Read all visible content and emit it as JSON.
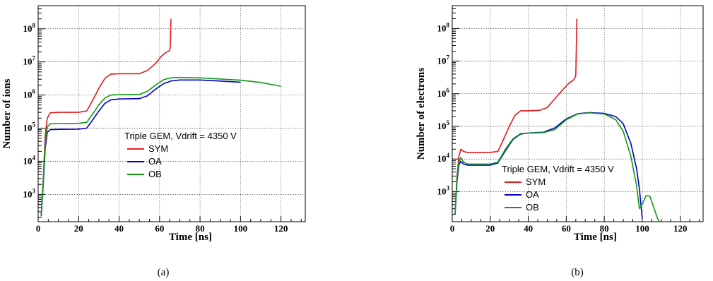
{
  "chart_data": [
    {
      "type": "line",
      "panel": "(a)",
      "xlabel": "Time [ns]",
      "ylabel": "Number of ions",
      "xlim": [
        0,
        132
      ],
      "ylim": [
        150,
        500000000
      ],
      "yscale": "log",
      "xticks": [
        0,
        20,
        40,
        60,
        80,
        100,
        120
      ],
      "yticks": [
        1000,
        10000,
        100000,
        1000000,
        10000000,
        100000000
      ],
      "grid": true,
      "legend": {
        "title": "Triple GEM, Vdrift = 4350 V",
        "placement": "center-right",
        "entries": [
          "SYM",
          "OA",
          "OB"
        ]
      },
      "series": [
        {
          "name": "SYM",
          "color": "#e41a1c",
          "points": [
            [
              1.5,
              220
            ],
            [
              2.5,
              3000
            ],
            [
              3.5,
              60000
            ],
            [
              4.5,
              200000
            ],
            [
              6,
              290000
            ],
            [
              10,
              300000
            ],
            [
              20,
              300000
            ],
            [
              24,
              330000
            ],
            [
              27,
              700000
            ],
            [
              30,
              1600000
            ],
            [
              33,
              3200000
            ],
            [
              36,
              4300000
            ],
            [
              40,
              4400000
            ],
            [
              50,
              4400000
            ],
            [
              54,
              5500000
            ],
            [
              58,
              9000000
            ],
            [
              61,
              15000000
            ],
            [
              63,
              19000000
            ],
            [
              65,
              22000000
            ],
            [
              65.3,
              30000000
            ],
            [
              65.6,
              200000000
            ]
          ]
        },
        {
          "name": "OA",
          "color": "#0000cc",
          "points": [
            [
              1.5,
              220
            ],
            [
              2.5,
              2000
            ],
            [
              3.5,
              25000
            ],
            [
              4.5,
              75000
            ],
            [
              6,
              90000
            ],
            [
              10,
              92000
            ],
            [
              20,
              93000
            ],
            [
              24,
              100000
            ],
            [
              27,
              180000
            ],
            [
              30,
              330000
            ],
            [
              33,
              560000
            ],
            [
              36,
              720000
            ],
            [
              40,
              760000
            ],
            [
              50,
              780000
            ],
            [
              54,
              950000
            ],
            [
              58,
              1500000
            ],
            [
              62,
              2200000
            ],
            [
              66,
              2700000
            ],
            [
              70,
              2850000
            ],
            [
              80,
              2850000
            ],
            [
              90,
              2650000
            ],
            [
              100,
              2450000
            ]
          ]
        },
        {
          "name": "OB",
          "color": "#119911",
          "points": [
            [
              1.5,
              220
            ],
            [
              2.5,
              2500
            ],
            [
              3.5,
              35000
            ],
            [
              4.5,
              110000
            ],
            [
              6,
              135000
            ],
            [
              10,
              138000
            ],
            [
              20,
              140000
            ],
            [
              24,
              150000
            ],
            [
              27,
              270000
            ],
            [
              30,
              500000
            ],
            [
              33,
              820000
            ],
            [
              36,
              1000000
            ],
            [
              40,
              1020000
            ],
            [
              50,
              1040000
            ],
            [
              54,
              1300000
            ],
            [
              58,
              2000000
            ],
            [
              62,
              2900000
            ],
            [
              66,
              3350000
            ],
            [
              70,
              3400000
            ],
            [
              80,
              3300000
            ],
            [
              90,
              3050000
            ],
            [
              100,
              2800000
            ],
            [
              110,
              2400000
            ],
            [
              120,
              1850000
            ]
          ]
        }
      ]
    },
    {
      "type": "line",
      "panel": "(b)",
      "xlabel": "Time [ns]",
      "ylabel": "Number of electrons",
      "xlim": [
        0,
        132
      ],
      "ylim": [
        120,
        500000000
      ],
      "yscale": "log",
      "xticks": [
        0,
        20,
        40,
        60,
        80,
        100,
        120
      ],
      "yticks": [
        1000,
        10000,
        100000,
        1000000,
        10000000,
        100000000
      ],
      "grid": true,
      "legend": {
        "title": "Triple GEM, Vdrift = 4350 V",
        "placement": "lower-center",
        "entries": [
          "SYM",
          "OA",
          "OB"
        ]
      },
      "series": [
        {
          "name": "SYM",
          "color": "#e41a1c",
          "points": [
            [
              1.5,
              200
            ],
            [
              2.5,
              3000
            ],
            [
              3.5,
              12000
            ],
            [
              4.5,
              20000
            ],
            [
              6,
              17000
            ],
            [
              8,
              16000
            ],
            [
              20,
              16000
            ],
            [
              24,
              17000
            ],
            [
              27,
              40000
            ],
            [
              30,
              100000
            ],
            [
              33,
              220000
            ],
            [
              36,
              300000
            ],
            [
              40,
              300000
            ],
            [
              46,
              310000
            ],
            [
              50,
              380000
            ],
            [
              54,
              700000
            ],
            [
              58,
              1300000
            ],
            [
              61,
              2000000
            ],
            [
              64,
              2700000
            ],
            [
              65,
              3500000
            ],
            [
              65.6,
              200000000
            ]
          ]
        },
        {
          "name": "OA",
          "color": "#0000cc",
          "points": [
            [
              1.5,
              200
            ],
            [
              2.5,
              2000
            ],
            [
              3.5,
              6500
            ],
            [
              4.5,
              8500
            ],
            [
              6,
              7000
            ],
            [
              8,
              6500
            ],
            [
              20,
              6500
            ],
            [
              24,
              7500
            ],
            [
              28,
              18000
            ],
            [
              32,
              40000
            ],
            [
              36,
              58000
            ],
            [
              40,
              63000
            ],
            [
              48,
              66000
            ],
            [
              54,
              90000
            ],
            [
              60,
              170000
            ],
            [
              66,
              245000
            ],
            [
              72,
              265000
            ],
            [
              80,
              250000
            ],
            [
              86,
              200000
            ],
            [
              90,
              120000
            ],
            [
              94,
              30000
            ],
            [
              97,
              5000
            ],
            [
              98.5,
              1200
            ],
            [
              100,
              150
            ]
          ]
        },
        {
          "name": "OB",
          "color": "#119911",
          "points": [
            [
              1.5,
              200
            ],
            [
              2.5,
              2500
            ],
            [
              3.5,
              8000
            ],
            [
              4.5,
              11000
            ],
            [
              6,
              8000
            ],
            [
              8,
              7000
            ],
            [
              20,
              7000
            ],
            [
              24,
              8000
            ],
            [
              28,
              20000
            ],
            [
              32,
              42000
            ],
            [
              36,
              60000
            ],
            [
              40,
              62000
            ],
            [
              48,
              64000
            ],
            [
              54,
              80000
            ],
            [
              60,
              160000
            ],
            [
              66,
              240000
            ],
            [
              72,
              260000
            ],
            [
              80,
              240000
            ],
            [
              86,
              160000
            ],
            [
              90,
              70000
            ],
            [
              94,
              12000
            ],
            [
              97,
              1500
            ],
            [
              98.5,
              300
            ],
            [
              100,
              420
            ],
            [
              102,
              760
            ],
            [
              104,
              720
            ],
            [
              106,
              330
            ],
            [
              108,
              150
            ],
            [
              109,
              120
            ]
          ]
        }
      ]
    }
  ],
  "captions": [
    "(a)",
    "(b)"
  ]
}
